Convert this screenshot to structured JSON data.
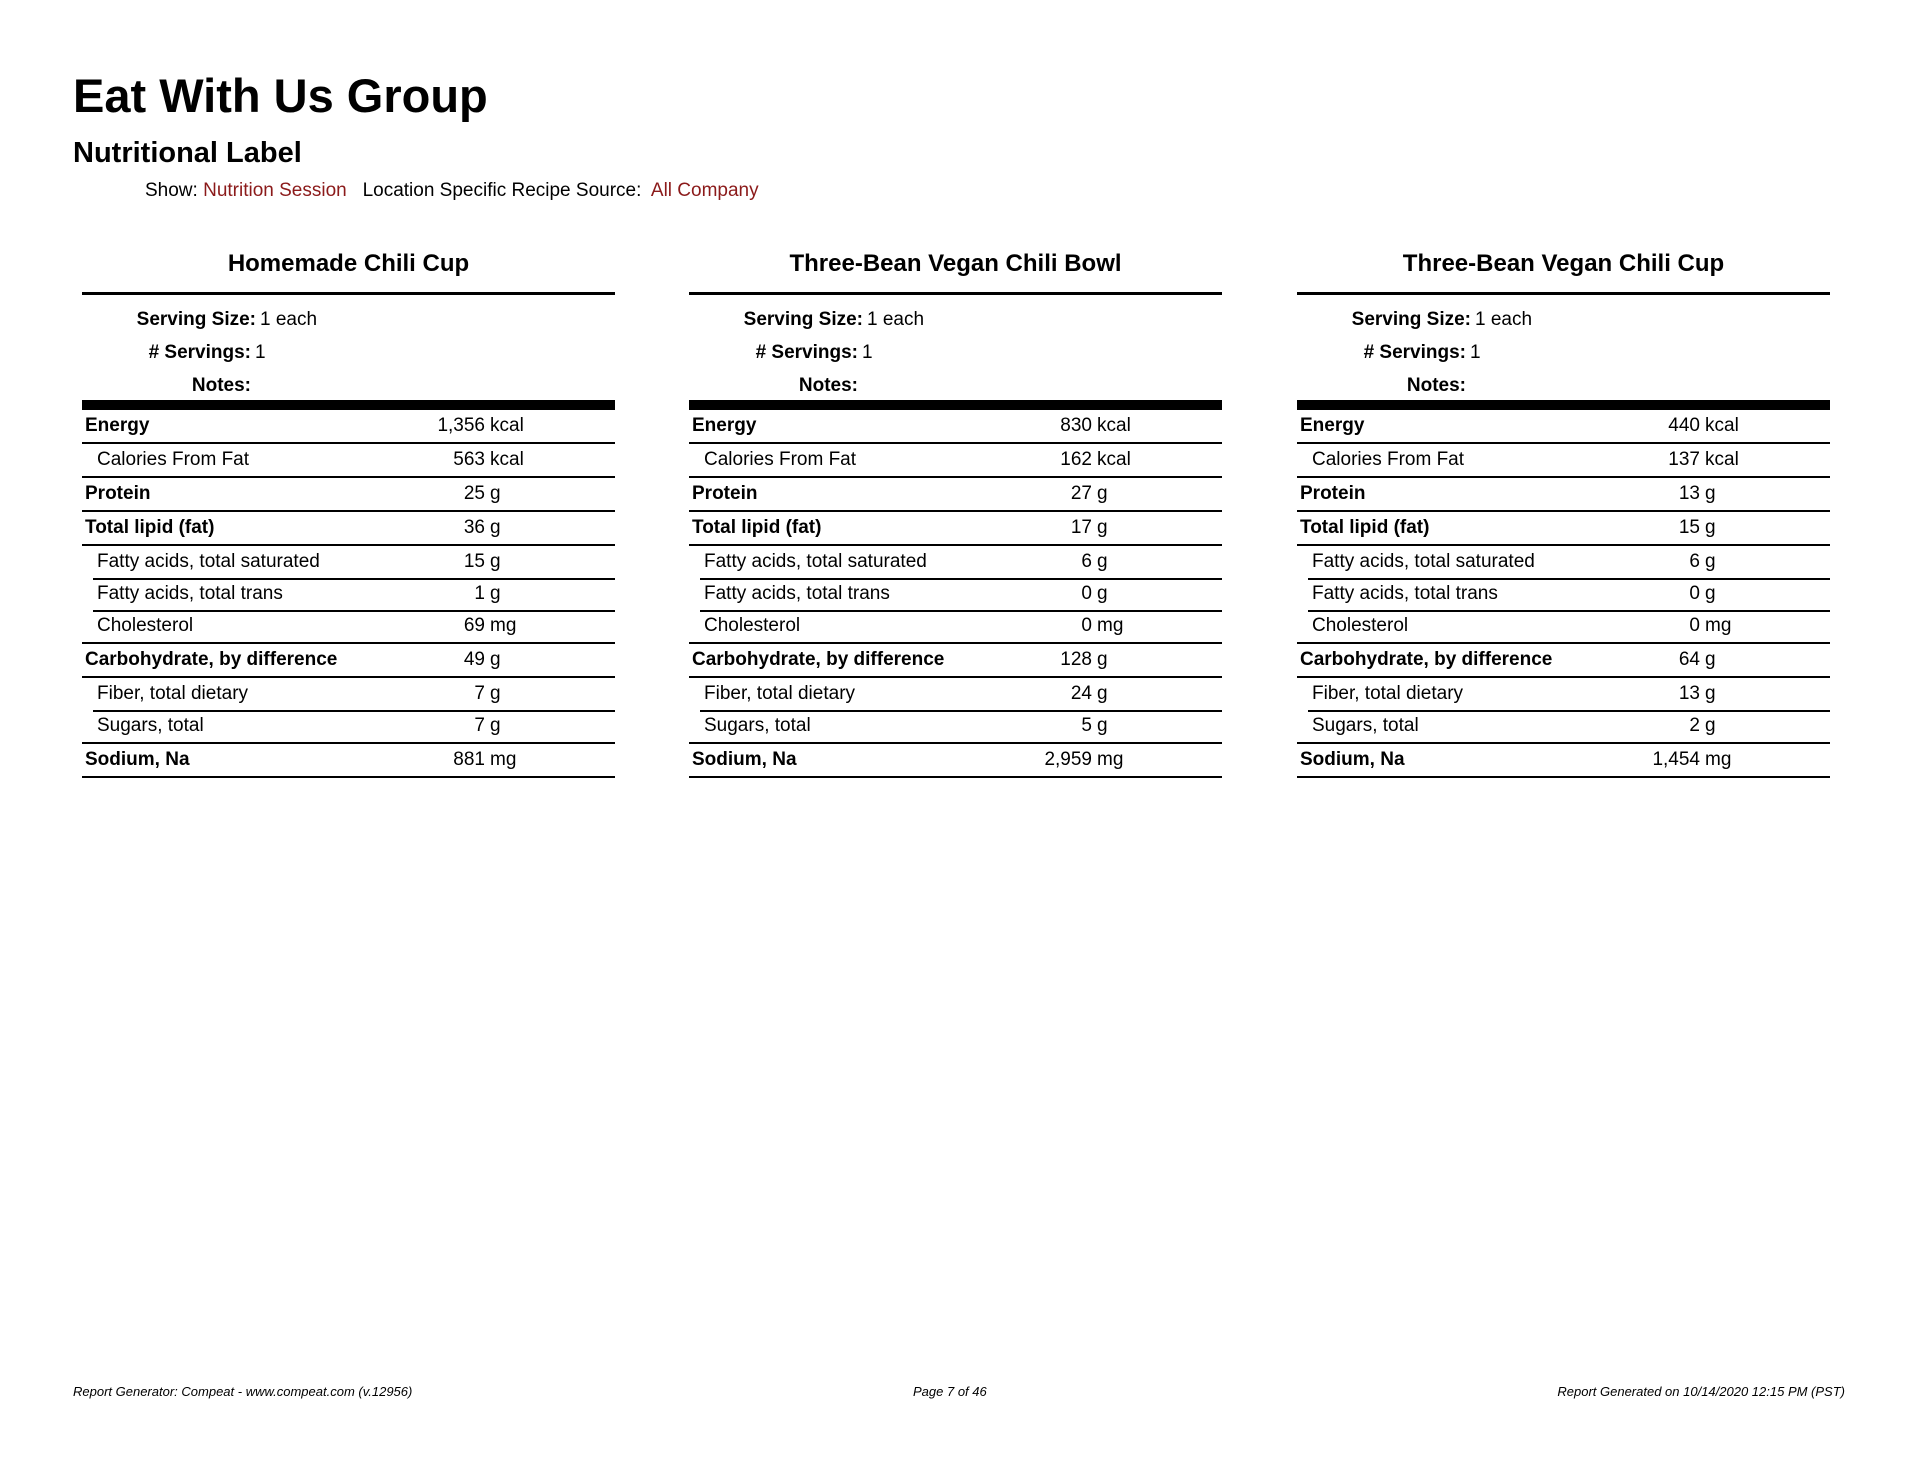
{
  "header": {
    "company": "Eat With Us Group",
    "report_title": "Nutritional Label",
    "show_label": "Show:",
    "show_value": "Nutrition Session",
    "source_label": "Location Specific Recipe Source:",
    "source_value": "All Company"
  },
  "labels": {
    "serving_size": "Serving Size:",
    "servings": "# Servings:",
    "notes": "Notes:"
  },
  "panels": [
    {
      "title": "Homemade Chili Cup",
      "serving_size": "1 each",
      "servings": "1",
      "notes": "",
      "rows": [
        {
          "name": "Energy",
          "num": "1,356",
          "unit": "kcal",
          "bold": true
        },
        {
          "name": "Calories From Fat",
          "num": "563",
          "unit": "kcal",
          "bold": false
        },
        {
          "name": "Protein",
          "num": "25",
          "unit": "g",
          "bold": true
        },
        {
          "name": "Total lipid (fat)",
          "num": "36",
          "unit": "g",
          "bold": true
        },
        {
          "name": "Fatty acids, total saturated",
          "num": "15",
          "unit": "g",
          "bold": false
        },
        {
          "name": "Fatty acids, total trans",
          "num": "1",
          "unit": "g",
          "bold": false
        },
        {
          "name": "Cholesterol",
          "num": "69",
          "unit": "mg",
          "bold": false
        },
        {
          "name": "Carbohydrate, by difference",
          "num": "49",
          "unit": "g",
          "bold": true
        },
        {
          "name": "Fiber, total dietary",
          "num": "7",
          "unit": "g",
          "bold": false
        },
        {
          "name": "Sugars, total",
          "num": "7",
          "unit": "g",
          "bold": false
        },
        {
          "name": "Sodium, Na",
          "num": "881",
          "unit": "mg",
          "bold": true
        }
      ]
    },
    {
      "title": "Three-Bean Vegan Chili Bowl",
      "serving_size": "1 each",
      "servings": "1",
      "notes": "",
      "rows": [
        {
          "name": "Energy",
          "num": "830",
          "unit": "kcal",
          "bold": true
        },
        {
          "name": "Calories From Fat",
          "num": "162",
          "unit": "kcal",
          "bold": false
        },
        {
          "name": "Protein",
          "num": "27",
          "unit": "g",
          "bold": true
        },
        {
          "name": "Total lipid (fat)",
          "num": "17",
          "unit": "g",
          "bold": true
        },
        {
          "name": "Fatty acids, total saturated",
          "num": "6",
          "unit": "g",
          "bold": false
        },
        {
          "name": "Fatty acids, total trans",
          "num": "0",
          "unit": "g",
          "bold": false
        },
        {
          "name": "Cholesterol",
          "num": "0",
          "unit": "mg",
          "bold": false
        },
        {
          "name": "Carbohydrate, by difference",
          "num": "128",
          "unit": "g",
          "bold": true
        },
        {
          "name": "Fiber, total dietary",
          "num": "24",
          "unit": "g",
          "bold": false
        },
        {
          "name": "Sugars, total",
          "num": "5",
          "unit": "g",
          "bold": false
        },
        {
          "name": "Sodium, Na",
          "num": "2,959",
          "unit": "mg",
          "bold": true
        }
      ]
    },
    {
      "title": "Three-Bean Vegan Chili Cup",
      "serving_size": "1 each",
      "servings": "1",
      "notes": "",
      "rows": [
        {
          "name": "Energy",
          "num": "440",
          "unit": "kcal",
          "bold": true
        },
        {
          "name": "Calories From Fat",
          "num": "137",
          "unit": "kcal",
          "bold": false
        },
        {
          "name": "Protein",
          "num": "13",
          "unit": "g",
          "bold": true
        },
        {
          "name": "Total lipid (fat)",
          "num": "15",
          "unit": "g",
          "bold": true
        },
        {
          "name": "Fatty acids, total saturated",
          "num": "6",
          "unit": "g",
          "bold": false
        },
        {
          "name": "Fatty acids, total trans",
          "num": "0",
          "unit": "g",
          "bold": false
        },
        {
          "name": "Cholesterol",
          "num": "0",
          "unit": "mg",
          "bold": false
        },
        {
          "name": "Carbohydrate, by difference",
          "num": "64",
          "unit": "g",
          "bold": true
        },
        {
          "name": "Fiber, total dietary",
          "num": "13",
          "unit": "g",
          "bold": false
        },
        {
          "name": "Sugars, total",
          "num": "2",
          "unit": "g",
          "bold": false
        },
        {
          "name": "Sodium, Na",
          "num": "1,454",
          "unit": "mg",
          "bold": true
        }
      ]
    }
  ],
  "footer": {
    "generator": "Report Generator: Compeat - www.compeat.com (v.12956)",
    "page": "Page 7 of 46",
    "generated": "Report Generated on 10/14/2020 12:15 PM (PST)"
  },
  "colors": {
    "accent": "#8b1a1a"
  }
}
